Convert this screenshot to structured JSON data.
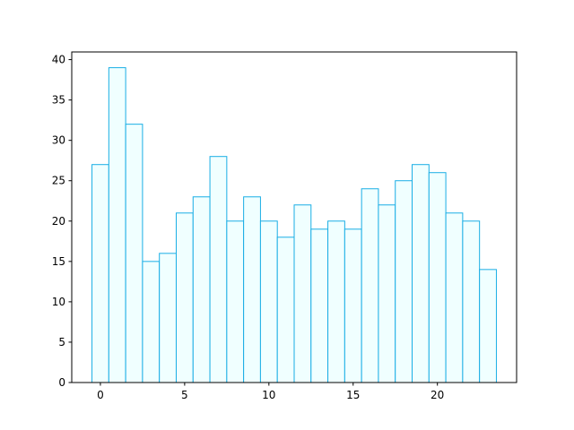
{
  "chart_data": {
    "type": "histogram",
    "bins": [
      -0.5,
      0.5,
      1.5,
      2.5,
      3.5,
      4.5,
      5.5,
      6.5,
      7.5,
      8.5,
      9.5,
      10.5,
      11.5,
      12.5,
      13.5,
      14.5,
      15.5,
      16.5,
      17.5,
      18.5,
      19.5,
      20.5,
      21.5,
      22.5,
      23.5
    ],
    "values": [
      27,
      39,
      32,
      15,
      16,
      21,
      23,
      28,
      20,
      23,
      20,
      18,
      22,
      19,
      20,
      19,
      24,
      22,
      25,
      27,
      26,
      21,
      20,
      14
    ],
    "color": "#f0ffff",
    "edgecolor": "#1aaee5",
    "xlim": [
      -1.7,
      24.7
    ],
    "xticks": [
      0,
      5,
      10,
      15,
      20
    ],
    "ylim": [
      0,
      40.95
    ],
    "yticks": [
      0,
      5,
      10,
      15,
      20,
      25,
      30,
      35,
      40
    ],
    "grid": false
  }
}
